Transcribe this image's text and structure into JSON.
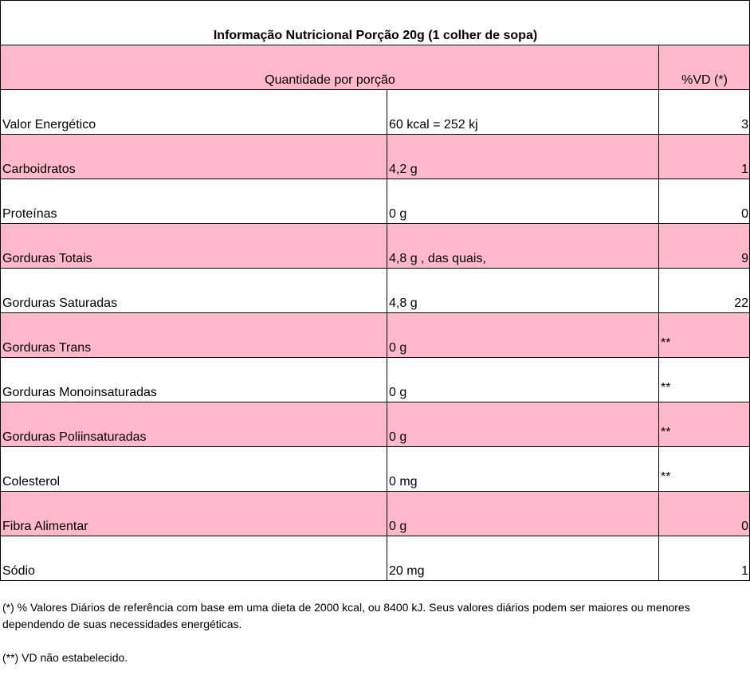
{
  "title": "Informação Nutricional Porção 20g (1 colher de sopa)",
  "header": {
    "quantity": "Quantidade por porção",
    "vd": "%VD (*)"
  },
  "rows": [
    [
      "Valor Energético",
      "60 kcal = 252 kj",
      "3"
    ],
    [
      "Carboidratos",
      "4,2 g",
      "1"
    ],
    [
      "Proteínas",
      "0 g",
      "0"
    ],
    [
      "Gorduras Totais",
      "4,8 g , das quais,",
      "9"
    ],
    [
      "Gorduras Saturadas",
      "4,8 g",
      "22"
    ],
    [
      "Gorduras Trans",
      "0 g",
      "**"
    ],
    [
      "Gorduras Monoinsaturadas",
      "0 g",
      "**"
    ],
    [
      "Gorduras Poliinsaturadas",
      "0 g",
      "**"
    ],
    [
      "Colesterol",
      "0 mg",
      "**"
    ],
    [
      "Fibra Alimentar",
      "0 g",
      "0"
    ],
    [
      "Sódio",
      "20 mg",
      "1"
    ]
  ],
  "footnotes": [
    "(*) % Valores Diários de referência com base em uma dieta de 2000 kcal,  ou 8400 kJ. Seus valores diários podem ser maiores ou menores dependendo de suas necessidades energéticas.",
    "(**) VD não estabelecido."
  ]
}
